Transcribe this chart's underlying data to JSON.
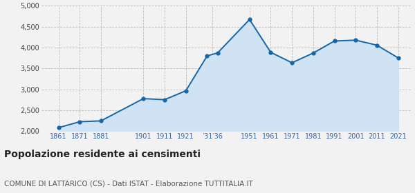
{
  "years": [
    1861,
    1871,
    1881,
    1901,
    1911,
    1921,
    1931,
    1936,
    1951,
    1961,
    1971,
    1981,
    1991,
    2001,
    2011,
    2021
  ],
  "population": [
    2085,
    2228,
    2248,
    2780,
    2755,
    2968,
    3800,
    3875,
    4672,
    3887,
    3638,
    3870,
    4158,
    4178,
    4058,
    3755
  ],
  "x_tick_positions": [
    1861,
    1871,
    1881,
    1901,
    1911,
    1921,
    1933.5,
    1951,
    1961,
    1971,
    1981,
    1991,
    2001,
    2011,
    2021
  ],
  "x_tick_labels": [
    "1861",
    "1871",
    "1881",
    "1901",
    "1911",
    "1921",
    "’31′36",
    "1951",
    "1961",
    "1971",
    "1981",
    "1991",
    "2001",
    "2011",
    "2021"
  ],
  "ylim": [
    2000,
    5000
  ],
  "yticks": [
    2000,
    2500,
    3000,
    3500,
    4000,
    4500,
    5000
  ],
  "ytick_labels": [
    "2,000",
    "2,500",
    "3,000",
    "3,500",
    "4,000",
    "4,500",
    "5,000"
  ],
  "xlim_left": 1853,
  "xlim_right": 2027,
  "line_color": "#1565a8",
  "fill_color": "#cfe3f5",
  "marker_color": "#1565a8",
  "grid_color": "#bbbbbb",
  "background_color": "#f2f2f2",
  "title": "Popolazione residente ai censimenti",
  "subtitle": "COMUNE DI LATTARICO (CS) - Dati ISTAT - Elaborazione TUTTITALIA.IT",
  "title_fontsize": 10,
  "subtitle_fontsize": 7.5,
  "tick_fontsize": 7,
  "xtick_color": "#3366aa"
}
